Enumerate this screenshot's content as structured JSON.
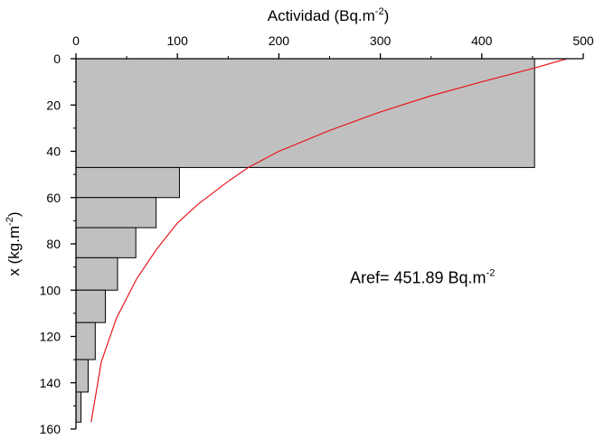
{
  "chart_data": {
    "type": "bar",
    "orientation": "horizontal",
    "x_axis": {
      "label_main": "Actividad (Bq.m",
      "label_sup": "-2",
      "label_close": ")",
      "position": "top",
      "range": [
        0,
        500
      ],
      "ticks": [
        0,
        100,
        200,
        300,
        400,
        500
      ],
      "tick_labels": [
        "0",
        "100",
        "200",
        "300",
        "400",
        "500"
      ]
    },
    "y_axis": {
      "label_main": "x (kg.m",
      "label_sup": "-2",
      "label_close": ")",
      "range": [
        0,
        160
      ],
      "inverted": true,
      "ticks": [
        0,
        20,
        40,
        60,
        80,
        100,
        120,
        140,
        160
      ],
      "tick_labels": [
        "0",
        "20",
        "40",
        "60",
        "80",
        "100",
        "120",
        "140",
        "160"
      ]
    },
    "bars": [
      {
        "y_from": 0,
        "y_to": 47,
        "value": 452
      },
      {
        "y_from": 47,
        "y_to": 60,
        "value": 102
      },
      {
        "y_from": 60,
        "y_to": 73,
        "value": 79
      },
      {
        "y_from": 73,
        "y_to": 86,
        "value": 59
      },
      {
        "y_from": 86,
        "y_to": 100,
        "value": 41
      },
      {
        "y_from": 100,
        "y_to": 114,
        "value": 29
      },
      {
        "y_from": 114,
        "y_to": 130,
        "value": 19
      },
      {
        "y_from": 130,
        "y_to": 144,
        "value": 12
      },
      {
        "y_from": 144,
        "y_to": 157,
        "value": 5
      }
    ],
    "fit_curve": {
      "points": [
        [
          484,
          0
        ],
        [
          452,
          4
        ],
        [
          400,
          10
        ],
        [
          350,
          16
        ],
        [
          300,
          23
        ],
        [
          250,
          31
        ],
        [
          200,
          40
        ],
        [
          170,
          47
        ],
        [
          150,
          53
        ],
        [
          120,
          63
        ],
        [
          100,
          71
        ],
        [
          80,
          82
        ],
        [
          60,
          95
        ],
        [
          40,
          112
        ],
        [
          25,
          131
        ],
        [
          15,
          157
        ]
      ]
    },
    "annotation": {
      "text_main": "Aref= 451.89 Bq.m",
      "text_sup": "-2",
      "x": 270,
      "y": 97
    },
    "grid": false,
    "legend": "none",
    "colors": {
      "bar_fill": "#c0c0c0",
      "bar_stroke": "#000000",
      "curve": "#e8161b",
      "axis": "#000000"
    }
  }
}
